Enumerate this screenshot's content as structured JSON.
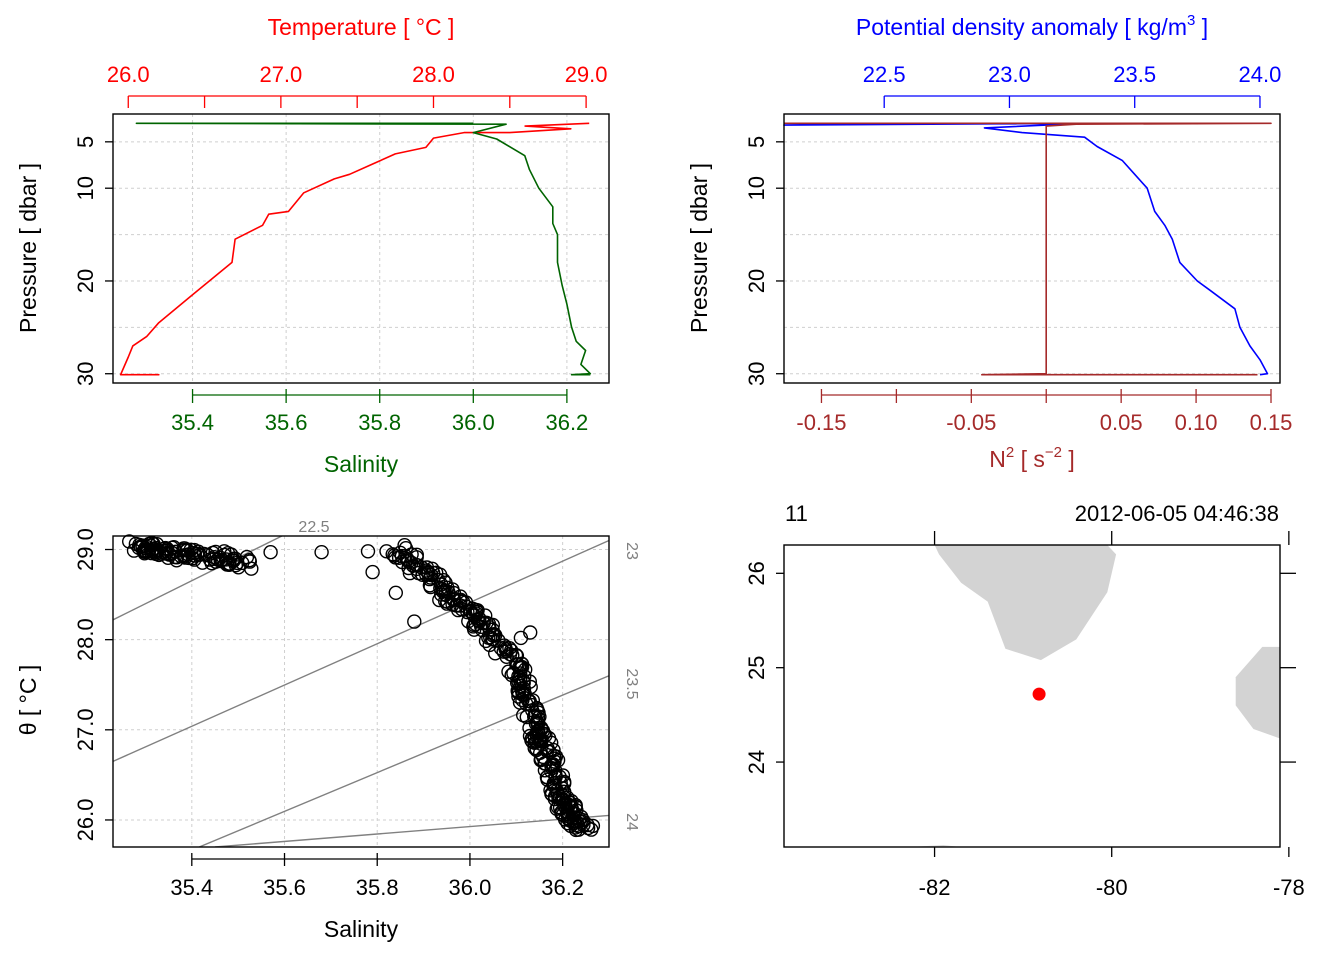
{
  "colors": {
    "temperature": "#ff0000",
    "salinity": "#006400",
    "density": "#0000ff",
    "n2": "#a52a2a",
    "land": "#d3d3d3",
    "station": "#ff0000",
    "isopycnal": "#808080"
  },
  "chart_data": [
    {
      "type": "line",
      "id": "temperature-salinity-profile",
      "ylabel": "Pressure [ dbar ]",
      "ylim": [
        31.0,
        2.0
      ],
      "yticks": [
        5,
        10,
        20,
        30
      ],
      "ygrid": [
        5,
        10,
        15,
        20,
        25,
        30
      ],
      "top_axis": {
        "title": "Temperature [ °C ]",
        "range": [
          25.9,
          29.15
        ],
        "major": [
          26.0,
          27.0,
          28.0,
          29.0
        ],
        "major_labels": [
          "26.0",
          "27.0",
          "28.0",
          "29.0"
        ],
        "minor": [
          26.5,
          27.5,
          28.5
        ]
      },
      "bottom_axis": {
        "title": "Salinity",
        "range": [
          35.23,
          36.29
        ],
        "ticks": [
          35.4,
          35.6,
          35.8,
          36.0,
          36.2
        ],
        "tick_labels": [
          "35.4",
          "35.6",
          "35.8",
          "36.0",
          "36.2"
        ]
      },
      "series": [
        {
          "name": "Temperature",
          "axis": "top",
          "x": [
            29.02,
            28.6,
            28.9,
            28.5,
            28.2,
            28.0,
            27.95,
            27.75,
            27.6,
            27.45,
            27.35,
            27.15,
            27.05,
            26.92,
            26.88,
            26.7,
            26.68,
            26.42,
            26.2,
            26.12,
            26.03,
            26.0,
            25.95,
            26.2,
            25.95
          ],
          "y": [
            3.0,
            3.3,
            3.6,
            4.0,
            4.0,
            4.6,
            5.6,
            6.3,
            7.4,
            8.5,
            9.0,
            10.5,
            12.5,
            12.8,
            14.0,
            15.5,
            18.0,
            21.5,
            24.5,
            26.0,
            27.0,
            28.2,
            30.1,
            30.1,
            30.1
          ]
        },
        {
          "name": "Salinity",
          "axis": "bottom",
          "x": [
            36.0,
            35.28,
            36.07,
            36.0,
            36.05,
            36.11,
            36.12,
            36.14,
            36.17,
            36.17,
            36.18,
            36.18,
            36.19,
            36.2,
            36.21,
            36.22,
            36.24,
            36.23,
            36.25,
            36.21,
            36.25
          ],
          "y": [
            3.0,
            3.0,
            3.1,
            4.0,
            4.7,
            6.5,
            8.0,
            10.0,
            12.0,
            13.8,
            15.0,
            18.0,
            20.5,
            22.5,
            25.0,
            26.5,
            27.5,
            29.0,
            30.0,
            30.1,
            30.1
          ]
        }
      ]
    },
    {
      "type": "line",
      "id": "density-n2-profile",
      "ylabel": "Pressure [ dbar ]",
      "ylim": [
        31.0,
        2.0
      ],
      "yticks": [
        5,
        10,
        20,
        30
      ],
      "ygrid": [
        5,
        10,
        15,
        20,
        25,
        30
      ],
      "top_axis": {
        "title_main": "Potential density anomaly [ kg/m",
        "title_sup": "3",
        "title_end": " ]",
        "range": [
          22.1,
          24.08
        ],
        "ticks": [
          22.5,
          23.0,
          23.5,
          24.0
        ],
        "tick_labels": [
          "22.5",
          "23.0",
          "23.5",
          "24.0"
        ]
      },
      "bottom_axis": {
        "title_main": "N",
        "title_sup": "2",
        "title_mid": " [ s",
        "title_sup2": "−2",
        "title_end": " ]",
        "range": [
          -0.175,
          0.156
        ],
        "major": [
          -0.15,
          -0.05,
          0.05,
          0.1,
          0.15
        ],
        "major_labels": [
          "-0.15",
          "-0.05",
          "0.05",
          "0.10",
          "0.15"
        ],
        "minor": [
          -0.1,
          0.0
        ]
      },
      "series": [
        {
          "name": "Potential density anomaly",
          "axis": "top",
          "x": [
            22.55,
            22.1,
            23.3,
            22.9,
            23.05,
            23.3,
            23.35,
            23.45,
            23.5,
            23.55,
            23.58,
            23.62,
            23.65,
            23.68,
            23.75,
            23.8,
            23.9,
            23.92,
            23.96,
            24.0,
            24.03,
            24.0
          ],
          "y": [
            3.0,
            3.2,
            3.0,
            3.5,
            4.0,
            4.5,
            5.5,
            7.0,
            8.5,
            10.0,
            12.5,
            14.0,
            15.5,
            18.0,
            20.0,
            21.0,
            23.0,
            25.0,
            27.0,
            28.5,
            30.0,
            30.1
          ]
        },
        {
          "name": "N2",
          "axis": "bottom",
          "x": [
            -0.175,
            0.15,
            0.02,
            0.0,
            0.0,
            0.0,
            0.0,
            0.0,
            0.0,
            0.0,
            -0.043,
            0.141
          ],
          "y": [
            3.0,
            3.0,
            3.1,
            3.3,
            5.0,
            10.0,
            15.0,
            20.0,
            25.0,
            30.0,
            30.1,
            30.1
          ]
        }
      ]
    },
    {
      "type": "scatter",
      "id": "ts-diagram",
      "xlabel": "Salinity",
      "ylabel": "θ [ °C ]",
      "xlim": [
        35.23,
        36.3
      ],
      "ylim": [
        25.7,
        29.15
      ],
      "xticks": [
        35.4,
        35.6,
        35.8,
        36.0,
        36.2
      ],
      "xtick_labels": [
        "35.4",
        "35.6",
        "35.8",
        "36.0",
        "36.2"
      ],
      "yticks": [
        26.0,
        27.0,
        28.0,
        29.0
      ],
      "ytick_labels": [
        "26.0",
        "27.0",
        "28.0",
        "29.0"
      ],
      "isopycnals": [
        {
          "label": "22.5",
          "x": [
            35.23,
            35.7
          ],
          "y": [
            28.22,
            29.42
          ]
        },
        {
          "label": "23",
          "x": [
            35.23,
            36.3
          ],
          "y": [
            26.65,
            29.1
          ]
        },
        {
          "label": "23.5",
          "x": [
            35.23,
            36.3
          ],
          "y": [
            25.3,
            27.6
          ]
        },
        {
          "label": "24",
          "x": [
            35.45,
            36.3
          ],
          "y": [
            25.7,
            26.05
          ]
        }
      ],
      "outliers": [
        [
          35.47,
          28.98
        ],
        [
          35.57,
          28.97
        ],
        [
          35.68,
          28.97
        ],
        [
          35.78,
          28.98
        ],
        [
          35.79,
          28.75
        ],
        [
          35.82,
          28.98
        ],
        [
          35.84,
          28.52
        ],
        [
          35.88,
          28.2
        ],
        [
          36.13,
          28.08
        ],
        [
          36.11,
          28.02
        ]
      ],
      "clusters": [
        {
          "x": [
            35.28,
            35.32,
            35.38,
            35.45,
            35.52
          ],
          "y": [
            29.03,
            29.0,
            28.95,
            28.9,
            28.85
          ],
          "jitter_x": 0.015,
          "jitter_y": 0.07
        },
        {
          "x": [
            35.85,
            35.9,
            35.95,
            36.0,
            36.05,
            36.1,
            36.12,
            36.14,
            36.16,
            36.18,
            36.2,
            36.22,
            36.25
          ],
          "y": [
            29.0,
            28.75,
            28.5,
            28.3,
            28.05,
            27.7,
            27.4,
            27.0,
            26.8,
            26.5,
            26.2,
            26.05,
            25.9
          ],
          "jitter_x": 0.02,
          "jitter_y": 0.06
        }
      ]
    },
    {
      "type": "map",
      "id": "station-map",
      "top_left_label": "11",
      "top_right_label": "2012-06-05 04:46:38",
      "xlim": [
        -83.7,
        -78.1
      ],
      "ylim": [
        23.1,
        26.3
      ],
      "xticks": [
        -82,
        -80,
        -78
      ],
      "xtick_labels": [
        "-82",
        "-80",
        "-78"
      ],
      "yticks": [
        24,
        25,
        26
      ],
      "ytick_labels": [
        "24",
        "25",
        "26"
      ],
      "top_minor": [
        -82,
        -80,
        -78
      ],
      "right_minor": [
        24,
        25,
        26
      ],
      "station": {
        "lon": -80.82,
        "lat": 24.72
      },
      "land": [
        {
          "name": "florida",
          "lon": [
            -82.0,
            -81.95,
            -81.7,
            -81.4,
            -81.2,
            -80.8,
            -80.4,
            -80.05,
            -79.95,
            -80.05
          ],
          "lat": [
            26.3,
            26.2,
            25.9,
            25.7,
            25.2,
            25.08,
            25.3,
            25.8,
            26.2,
            26.3
          ]
        },
        {
          "name": "bahamas",
          "lon": [
            -78.1,
            -78.3,
            -78.6,
            -78.6,
            -78.4,
            -78.1
          ],
          "lat": [
            25.22,
            25.22,
            24.9,
            24.6,
            24.35,
            24.25
          ]
        },
        {
          "name": "cuba",
          "lon": [
            -82.3,
            -81.9,
            -81.7,
            -82.2
          ],
          "lat": [
            23.1,
            23.12,
            23.1,
            23.08
          ]
        }
      ]
    }
  ]
}
